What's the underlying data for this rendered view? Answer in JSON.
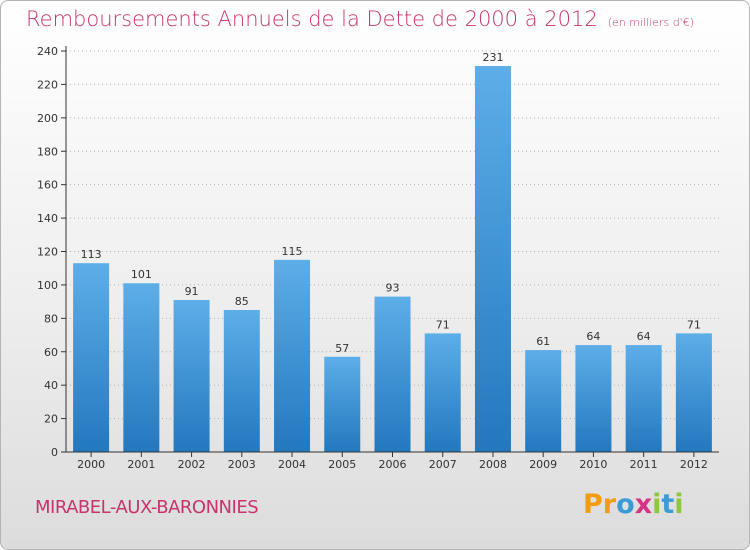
{
  "header": {
    "title": "Remboursements Annuels de la Dette de 2000 à 2012",
    "subtitle": "(en milliers d'€)"
  },
  "footer": {
    "commune": "MIRABEL-AUX-BARONNIES",
    "brand": "Proxiti",
    "brand_letters": [
      {
        "char": "P",
        "color": "#f39c12"
      },
      {
        "char": "r",
        "color": "#f39c12"
      },
      {
        "char": "o",
        "color": "#3a9bd5"
      },
      {
        "char": "x",
        "color": "#d63384"
      },
      {
        "char": "i",
        "color": "#8dc63f"
      },
      {
        "char": "t",
        "color": "#3a9bd5"
      },
      {
        "char": "i",
        "color": "#8dc63f"
      }
    ]
  },
  "colors": {
    "bar_light": "#5daee8",
    "bar_dark": "#2378be",
    "title": "#c8336e",
    "grid": "#b0b0b0",
    "axis": "#333333"
  },
  "chart_data": {
    "type": "bar",
    "categories": [
      "2000",
      "2001",
      "2002",
      "2003",
      "2004",
      "2005",
      "2006",
      "2007",
      "2008",
      "2009",
      "2010",
      "2011",
      "2012"
    ],
    "values": [
      113,
      101,
      91,
      85,
      115,
      57,
      93,
      71,
      231,
      61,
      64,
      64,
      71
    ],
    "data_labels": [
      "113",
      "101",
      "91",
      "85",
      "115",
      "57",
      "93",
      "71",
      "231",
      "61",
      "64",
      "64",
      "71"
    ],
    "ylim": [
      0,
      240
    ],
    "yticks": [
      0,
      20,
      40,
      60,
      80,
      100,
      120,
      140,
      160,
      180,
      200,
      220,
      240
    ],
    "grid": true,
    "xlabel": "",
    "ylabel": ""
  }
}
